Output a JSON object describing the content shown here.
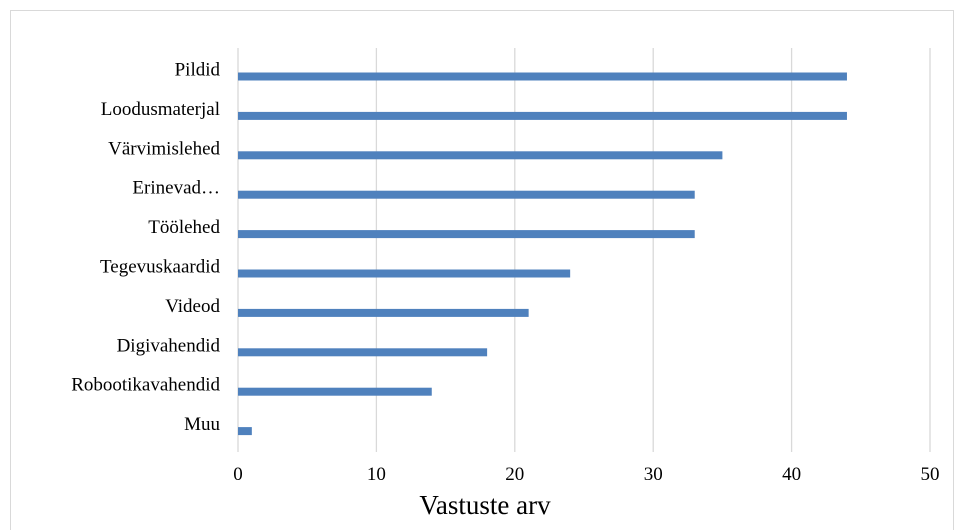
{
  "chart_data": {
    "type": "bar",
    "orientation": "horizontal",
    "categories": [
      "Pildid",
      "Loodusmaterjal",
      "Värvimislehed",
      "Erinevad…",
      "Töölehed",
      "Tegevuskaardid",
      "Videod",
      "Digivahendid",
      "Robootikavahendid",
      "Muu"
    ],
    "values": [
      44,
      44,
      35,
      33,
      33,
      24,
      21,
      18,
      14,
      1
    ],
    "xlabel": "Vastuste arv",
    "ylabel": "",
    "xlim": [
      0,
      50
    ],
    "xticks": [
      0,
      10,
      20,
      30,
      40,
      50
    ],
    "grid": true,
    "legend": "none",
    "bar_color": "#4f81bd"
  }
}
